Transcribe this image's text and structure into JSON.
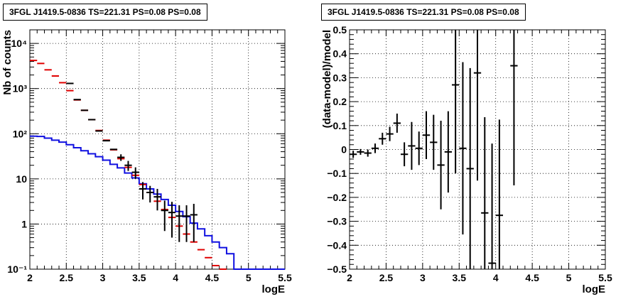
{
  "chart_data": [
    {
      "type": "line",
      "title": "3FGL J1419.5-0836 TS=221.31 PS=0.08 PS=0.08",
      "xlabel": "logE",
      "ylabel": "Nb of counts",
      "xlim": [
        2,
        5.5
      ],
      "ylim": [
        0.1,
        20000
      ],
      "yscale": "log",
      "grid": true,
      "x_ticks": [
        2,
        2.5,
        3,
        3.5,
        4,
        4.5,
        5,
        5.5
      ],
      "x_tick_labels": [
        "2",
        "2.5",
        "3",
        "3.5",
        "4",
        "4.5",
        "5",
        "5.5"
      ],
      "y_ticks": [
        0.1,
        1,
        10,
        100,
        1000,
        10000
      ],
      "y_tick_labels": [
        "10⁻¹",
        "1",
        "10",
        "10²",
        "10³",
        "10⁴"
      ],
      "bin_width": 0.1,
      "series": [
        {
          "kind": "step",
          "color": "#1010e0",
          "x": [
            2.0,
            2.1,
            2.2,
            2.3,
            2.4,
            2.5,
            2.6,
            2.7,
            2.8,
            2.9,
            3.0,
            3.1,
            3.2,
            3.3,
            3.4,
            3.5,
            3.6,
            3.7,
            3.8,
            3.9,
            4.0,
            4.1,
            4.2,
            4.3,
            4.4,
            4.5,
            4.6,
            4.7,
            4.8,
            4.9,
            5.0,
            5.1,
            5.2,
            5.3,
            5.4
          ],
          "y": [
            88,
            87,
            80,
            72,
            65,
            57,
            49,
            42,
            36,
            31,
            26,
            21,
            17.5,
            13.5,
            10.5,
            7.8,
            6.0,
            4.6,
            3.5,
            2.6,
            1.9,
            1.45,
            1.05,
            0.78,
            0.55,
            0.4,
            0.3,
            0.22,
            0.1,
            0.1,
            0.1,
            0.1,
            0.1,
            0.1,
            0.1
          ]
        },
        {
          "kind": "errorbar",
          "color": "#e00000",
          "x": [
            2.05,
            2.15,
            2.25,
            2.35,
            2.45,
            2.55,
            2.65,
            2.75,
            2.85,
            2.95,
            3.05,
            3.15,
            3.25,
            3.35,
            3.45,
            3.55,
            3.65,
            3.75,
            3.85,
            3.95,
            4.05,
            4.15,
            4.25,
            4.35,
            4.45,
            4.55,
            4.65
          ],
          "y": [
            4200,
            3600,
            2600,
            1900,
            1350,
            900,
            560,
            330,
            205,
            118,
            72,
            44,
            28,
            18,
            12,
            7.5,
            5.0,
            3.2,
            2.1,
            1.4,
            0.9,
            0.6,
            0.4,
            0.27,
            0.18,
            0.12,
            0.08
          ],
          "yerr_lo": [
            0,
            0,
            0,
            0,
            0,
            0,
            0,
            0,
            0,
            0,
            0,
            0,
            0,
            0,
            0,
            0,
            0,
            0,
            0,
            0,
            0,
            0,
            0,
            0,
            0,
            0,
            0
          ],
          "yerr_hi": [
            0,
            0,
            0,
            0,
            0,
            0,
            0,
            0,
            0,
            0,
            0,
            0,
            0,
            0,
            0,
            0,
            0,
            0,
            0,
            0,
            0,
            0,
            0,
            0,
            0,
            0,
            0
          ]
        },
        {
          "kind": "errorbar",
          "color": "#000000",
          "x": [
            2.55,
            2.65,
            2.75,
            2.85,
            2.95,
            3.05,
            3.15,
            3.25,
            3.35,
            3.45,
            3.55,
            3.65,
            3.75,
            3.85,
            3.95,
            4.05,
            4.15,
            4.25
          ],
          "y": [
            1300,
            570,
            330,
            205,
            115,
            70,
            45,
            30,
            20,
            14,
            6,
            5,
            4,
            2,
            1.8,
            1.5,
            1.5,
            1.6
          ],
          "yerr_lo": [
            0,
            0,
            0,
            0,
            0,
            0,
            0,
            5,
            5,
            4,
            2.5,
            2,
            2,
            1.3,
            1.3,
            1.1,
            1.1,
            1.2
          ],
          "yerr_hi": [
            0,
            0,
            0,
            0,
            0,
            0,
            0,
            5,
            5,
            4,
            2.5,
            2,
            2,
            1.3,
            1.3,
            1.1,
            1.1,
            1.2
          ]
        }
      ]
    },
    {
      "type": "scatter",
      "title": "3FGL J1419.5-0836 TS=221.31 PS=0.08 PS=0.08",
      "xlabel": "logE",
      "ylabel": "(data-model)/model",
      "xlim": [
        2,
        5.5
      ],
      "ylim": [
        -0.5,
        0.5
      ],
      "grid": true,
      "x_ticks": [
        2,
        2.5,
        3,
        3.5,
        4,
        4.5,
        5,
        5.5
      ],
      "x_tick_labels": [
        "2",
        "2.5",
        "3",
        "3.5",
        "4",
        "4.5",
        "5",
        "5.5"
      ],
      "y_ticks": [
        -0.5,
        -0.4,
        -0.3,
        -0.2,
        -0.1,
        0,
        0.1,
        0.2,
        0.3,
        0.4,
        0.5
      ],
      "y_tick_labels": [
        "−0.5",
        "−0.4",
        "−0.3",
        "−0.2",
        "−0.1",
        "0",
        "0.1",
        "0.2",
        "0.3",
        "0.4",
        "0.5"
      ],
      "bin_width": 0.1,
      "series": [
        {
          "kind": "errorbar",
          "color": "#000000",
          "x": [
            2.05,
            2.15,
            2.25,
            2.35,
            2.45,
            2.55,
            2.65,
            2.75,
            2.85,
            2.95,
            3.05,
            3.15,
            3.25,
            3.35,
            3.45,
            3.55,
            3.65,
            3.75,
            3.85,
            3.95,
            4.05,
            4.25
          ],
          "y": [
            -0.02,
            -0.01,
            -0.015,
            0.005,
            0.045,
            0.065,
            0.11,
            -0.02,
            0.015,
            0.005,
            0.06,
            0.03,
            -0.065,
            -0.01,
            0.27,
            0.005,
            -0.08,
            0.32,
            -0.265,
            -0.475,
            -0.275,
            0.35
          ],
          "yerr": [
            0.015,
            0.012,
            0.015,
            0.02,
            0.025,
            0.03,
            0.04,
            0.05,
            0.1,
            0.07,
            0.1,
            0.115,
            0.185,
            0.17,
            0.37,
            0.36,
            0.42,
            0.45,
            0.4,
            0.5,
            0.4,
            0.5
          ]
        }
      ]
    }
  ]
}
